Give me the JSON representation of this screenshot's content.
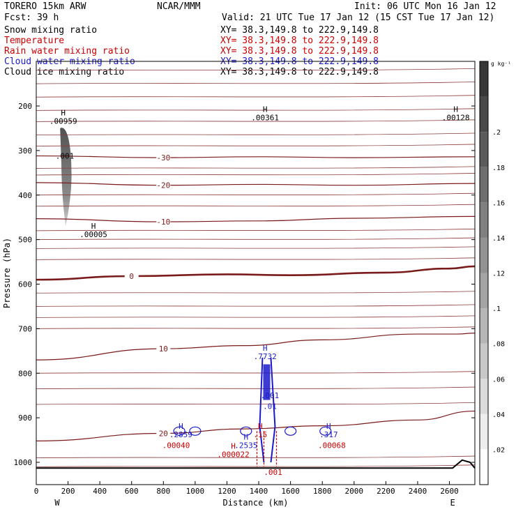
{
  "header": {
    "model": "TORERO 15km ARW",
    "org": "NCAR/MMM",
    "init": "Init: 06 UTC Mon 16 Jan 12",
    "fcst": "Fcst: 39 h",
    "valid": "Valid: 21 UTC Tue 17 Jan 12 (15 CST Tue 17 Jan 12)"
  },
  "fields": [
    {
      "name": "Snow mixing ratio",
      "color": "#000000",
      "xy": "XY= 38.3,149.8 to 222.9,149.8"
    },
    {
      "name": "Temperature",
      "color": "#cc0000",
      "xy": "XY= 38.3,149.8 to 222.9,149.8"
    },
    {
      "name": "Rain water mixing ratio",
      "color": "#cc0000",
      "xy": "XY= 38.3,149.8 to 222.9,149.8"
    },
    {
      "name": "Cloud water mixing ratio",
      "color": "#1a1acc",
      "xy": "XY= 38.3,149.8 to 222.9,149.8"
    },
    {
      "name": "Cloud ice mixing ratio",
      "color": "#000000",
      "xy": "XY= 38.3,149.8 to 222.9,149.8"
    }
  ],
  "colorbar": {
    "unit": "g kg⁻¹",
    "ticks": [
      0.02,
      0.04,
      0.06,
      0.08,
      0.1,
      0.12,
      0.14,
      0.16,
      0.18,
      0.2
    ],
    "tick_labels": [
      ".02",
      ".04",
      ".06",
      ".08",
      ".1",
      ".12",
      ".14",
      ".16",
      ".18",
      ".2"
    ],
    "range": [
      0,
      0.24
    ]
  },
  "chart_data": {
    "type": "line",
    "title": "",
    "xlabel": "Distance (km)",
    "ylabel": "Pressure (hPa)",
    "xlim": [
      0,
      2760
    ],
    "ylim": [
      1050,
      100
    ],
    "x_ticks": [
      0,
      200,
      400,
      600,
      800,
      1000,
      1200,
      1400,
      1600,
      1800,
      2000,
      2200,
      2400,
      2600
    ],
    "y_ticks": [
      200,
      300,
      400,
      500,
      600,
      700,
      800,
      900,
      1000
    ],
    "x_end_labels": {
      "left": "W",
      "right": "E"
    },
    "isotherms": [
      {
        "label": "-30",
        "x": [
          0,
          800,
          1400,
          2000,
          2760
        ],
        "y": [
          312,
          316,
          314,
          316,
          314
        ]
      },
      {
        "label": "-20",
        "x": [
          0,
          800,
          1400,
          2000,
          2760
        ],
        "y": [
          372,
          378,
          376,
          378,
          374
        ]
      },
      {
        "label": "-10",
        "x": [
          0,
          800,
          1400,
          2000,
          2760
        ],
        "y": [
          453,
          460,
          458,
          452,
          448
        ]
      },
      {
        "label": "0",
        "x": [
          0,
          600,
          1200,
          1600,
          2200,
          2600,
          2760
        ],
        "y": [
          590,
          582,
          578,
          580,
          574,
          565,
          560
        ]
      },
      {
        "label": "10",
        "x": [
          0,
          800,
          1300,
          1800,
          2400,
          2650,
          2760
        ],
        "y": [
          770,
          745,
          738,
          725,
          712,
          712,
          710
        ]
      },
      {
        "label": "20",
        "x": [
          0,
          800,
          1300,
          1800,
          2400,
          2760
        ],
        "y": [
          952,
          935,
          925,
          918,
          905,
          885
        ]
      }
    ],
    "annotations": [
      {
        "text": "H",
        "value": ".00959",
        "x": 170,
        "p": 240,
        "color": "#000000"
      },
      {
        "text": "",
        "value": ".001",
        "x": 180,
        "p": 318,
        "color": "#000000"
      },
      {
        "text": "H",
        "value": ".00005",
        "x": 360,
        "p": 494,
        "color": "#000000"
      },
      {
        "text": "H",
        "value": ".00361",
        "x": 1440,
        "p": 232,
        "color": "#000000"
      },
      {
        "text": "H",
        "value": ".00128",
        "x": 2640,
        "p": 232,
        "color": "#000000"
      },
      {
        "text": "H",
        "value": ".7732",
        "x": 1440,
        "p": 768,
        "color": "#1a1acc"
      },
      {
        "text": "",
        "value": ".001",
        "x": 1470,
        "p": 856,
        "color": "#1a1acc"
      },
      {
        "text": "",
        "value": ".01",
        "x": 1470,
        "p": 880,
        "color": "#1a1acc"
      },
      {
        "text": "H",
        "value": ".2859",
        "x": 910,
        "p": 944,
        "color": "#1a1acc"
      },
      {
        "text": "H",
        "value": ".2535",
        "x": 1320,
        "p": 968,
        "color": "#1a1acc"
      },
      {
        "text": "H",
        "value": ".317",
        "x": 1840,
        "p": 944,
        "color": "#1a1acc"
      },
      {
        "text": "",
        "value": ".00040",
        "x": 880,
        "p": 968,
        "color": "#cc0000"
      },
      {
        "text": "H",
        "value": ".000022",
        "x": 1240,
        "p": 988,
        "color": "#cc0000"
      },
      {
        "text": "H",
        "value": ".15",
        "x": 1410,
        "p": 944,
        "color": "#cc0000"
      },
      {
        "text": "",
        "value": ".00068",
        "x": 1860,
        "p": 968,
        "color": "#cc0000"
      },
      {
        "text": "",
        "value": ".001",
        "x": 1490,
        "p": 1028,
        "color": "#cc0000"
      }
    ],
    "snow_max": 0.24,
    "grid": false,
    "legend": "top-left"
  }
}
